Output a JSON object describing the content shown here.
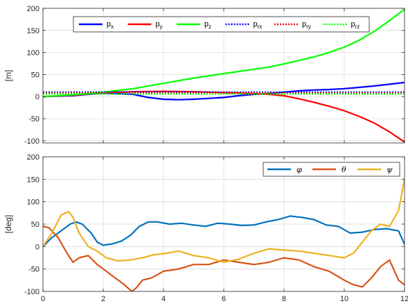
{
  "chart_data": [
    {
      "type": "line",
      "ylabel": "[m]",
      "xlim": [
        0,
        12
      ],
      "ylim": [
        -105,
        200
      ],
      "xticks": [
        0,
        2,
        4,
        6,
        8,
        10,
        12
      ],
      "xtick_labels_visible": false,
      "yticks": [
        -100,
        -50,
        0,
        50,
        100,
        150,
        200
      ],
      "ytick_labels": [
        "-100",
        "-50",
        "0",
        "50",
        "100",
        "150",
        "200"
      ],
      "grid": true,
      "legend": {
        "placement": "top",
        "orientation": "horizontal"
      },
      "series": [
        {
          "name": "p",
          "sub": "x",
          "color": "#0000ff",
          "style": "solid",
          "x": [
            0,
            1,
            2,
            3,
            3.5,
            4,
            4.5,
            5,
            5.5,
            6,
            6.5,
            7,
            7.5,
            8,
            8.5,
            9,
            9.5,
            10,
            10.5,
            11,
            11.5,
            12
          ],
          "y": [
            0,
            2,
            8,
            5,
            -2,
            -6,
            -7,
            -6,
            -4,
            -2,
            2,
            5,
            7,
            10,
            13,
            15,
            16,
            18,
            21,
            24,
            28,
            32
          ]
        },
        {
          "name": "p",
          "sub": "y",
          "color": "#ff0000",
          "style": "solid",
          "x": [
            0,
            1,
            2,
            3,
            4,
            5,
            6,
            7,
            7.5,
            8,
            8.5,
            9,
            9.5,
            10,
            10.5,
            11,
            11.5,
            12
          ],
          "y": [
            0,
            3,
            9,
            11,
            12,
            11,
            9,
            7,
            5,
            2,
            -5,
            -13,
            -22,
            -32,
            -45,
            -60,
            -80,
            -103
          ]
        },
        {
          "name": "p",
          "sub": "z",
          "color": "#00ff00",
          "style": "solid",
          "x": [
            0,
            1,
            2,
            2.5,
            3,
            3.5,
            4,
            4.5,
            5,
            5.5,
            6,
            6.5,
            7,
            7.5,
            8,
            8.5,
            9,
            9.5,
            10,
            10.5,
            11,
            11.5,
            12
          ],
          "y": [
            0,
            4,
            10,
            14,
            18,
            24,
            30,
            36,
            42,
            47,
            52,
            57,
            62,
            67,
            74,
            82,
            90,
            100,
            112,
            128,
            148,
            172,
            198
          ]
        },
        {
          "name": "p",
          "sub": "rx",
          "color": "#0000ff",
          "style": "dotted",
          "x": [
            0,
            12
          ],
          "y": [
            10,
            10
          ]
        },
        {
          "name": "p",
          "sub": "ry",
          "color": "#ff0000",
          "style": "dotted",
          "x": [
            0,
            12
          ],
          "y": [
            8,
            8
          ]
        },
        {
          "name": "p",
          "sub": "rz",
          "color": "#00ff00",
          "style": "dotted",
          "x": [
            0,
            12
          ],
          "y": [
            6,
            6
          ]
        }
      ]
    },
    {
      "type": "line",
      "ylabel": "[deg]",
      "xlim": [
        0,
        12
      ],
      "ylim": [
        -100,
        200
      ],
      "xticks": [
        0,
        2,
        4,
        6,
        8,
        10,
        12
      ],
      "xtick_labels": [
        "0",
        "2",
        "4",
        "6",
        "8",
        "10",
        "12"
      ],
      "yticks": [
        -100,
        -50,
        0,
        50,
        100,
        150,
        200
      ],
      "ytick_labels": [
        "-100",
        "-50",
        "0",
        "50",
        "100",
        "150",
        "200"
      ],
      "grid": true,
      "legend": {
        "placement": "top-right",
        "orientation": "horizontal"
      },
      "series": [
        {
          "name": "φ",
          "color": "#0072bd",
          "style": "solid",
          "x": [
            0,
            0.3,
            0.6,
            0.9,
            1.1,
            1.3,
            1.6,
            1.8,
            2.0,
            2.3,
            2.6,
            2.9,
            3.2,
            3.5,
            3.8,
            4.2,
            4.6,
            5.0,
            5.4,
            5.8,
            6.2,
            6.6,
            7.0,
            7.4,
            7.8,
            8.2,
            8.6,
            9.0,
            9.4,
            9.8,
            10.2,
            10.6,
            11.0,
            11.4,
            11.8,
            12
          ],
          "y": [
            0,
            20,
            35,
            50,
            55,
            50,
            30,
            10,
            3,
            6,
            12,
            25,
            45,
            55,
            55,
            50,
            52,
            48,
            45,
            52,
            50,
            47,
            48,
            55,
            60,
            68,
            65,
            60,
            48,
            45,
            30,
            32,
            38,
            40,
            35,
            5
          ]
        },
        {
          "name": "θ",
          "color": "#d95319",
          "style": "solid",
          "x": [
            0,
            0.2,
            0.5,
            0.8,
            1.0,
            1.2,
            1.5,
            1.8,
            2.1,
            2.4,
            2.7,
            2.95,
            3.1,
            3.3,
            3.6,
            4.0,
            4.5,
            5.0,
            5.5,
            6.0,
            6.5,
            7.0,
            7.5,
            8.0,
            8.5,
            9.0,
            9.5,
            10.0,
            10.3,
            10.6,
            10.9,
            11.2,
            11.5,
            11.8,
            12
          ],
          "y": [
            45,
            42,
            20,
            -15,
            -35,
            -25,
            -20,
            -40,
            -55,
            -70,
            -85,
            -100,
            -92,
            -75,
            -70,
            -55,
            -50,
            -40,
            -40,
            -30,
            -35,
            -40,
            -35,
            -25,
            -30,
            -45,
            -55,
            -75,
            -85,
            -90,
            -70,
            -45,
            -30,
            -75,
            -85
          ]
        },
        {
          "name": "ψ",
          "color": "#edb120",
          "style": "solid",
          "x": [
            0,
            0.3,
            0.6,
            0.85,
            1.0,
            1.2,
            1.5,
            1.8,
            2.1,
            2.5,
            2.9,
            3.3,
            3.7,
            4.1,
            4.5,
            5.0,
            5.5,
            6.0,
            6.5,
            7.0,
            7.5,
            8.0,
            8.5,
            9.0,
            9.5,
            10.0,
            10.3,
            10.6,
            10.9,
            11.2,
            11.5,
            11.8,
            12
          ],
          "y": [
            0,
            30,
            70,
            78,
            65,
            30,
            0,
            -10,
            -25,
            -32,
            -30,
            -25,
            -18,
            -15,
            -10,
            -20,
            -25,
            -35,
            -28,
            -15,
            -5,
            -8,
            -10,
            -15,
            -20,
            -25,
            -15,
            10,
            35,
            50,
            45,
            80,
            150
          ]
        }
      ]
    }
  ]
}
